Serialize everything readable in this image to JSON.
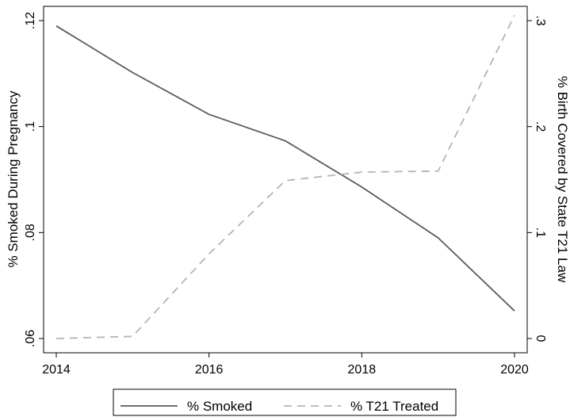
{
  "chart_data": {
    "type": "line",
    "x": [
      2014,
      2015,
      2016,
      2017,
      2018,
      2019,
      2020
    ],
    "series": [
      {
        "name": "% Smoked",
        "axis": "left",
        "style": "solid",
        "color": "#5a5a5a",
        "values": [
          0.119,
          0.1102,
          0.1023,
          0.0973,
          0.0886,
          0.079,
          0.0652
        ]
      },
      {
        "name": "% T21 Treated",
        "axis": "right",
        "style": "dashed",
        "color": "#b4b4b4",
        "values": [
          0.0,
          0.002,
          0.08,
          0.149,
          0.157,
          0.158,
          0.305
        ]
      }
    ],
    "xlabel": "",
    "ylabel_left": "% Smoked During Pregnancy",
    "ylabel_right": "% Birth Covered by State T21 Law",
    "xlim": [
      2014,
      2020
    ],
    "ylim_left": [
      0.06,
      0.12
    ],
    "ylim_right": [
      0,
      0.3
    ],
    "xticks": [
      2014,
      2016,
      2018,
      2020
    ],
    "xtick_labels": [
      "2014",
      "2016",
      "2018",
      "2020"
    ],
    "yticks_left": [
      0.06,
      0.08,
      0.1,
      0.12
    ],
    "ytick_labels_left": [
      ".06",
      ".08",
      ".1",
      ".12"
    ],
    "yticks_right": [
      0,
      0.1,
      0.2,
      0.3
    ],
    "ytick_labels_right": [
      "0",
      ".1",
      ".2",
      ".3"
    ],
    "grid": false,
    "legend": "bottom"
  }
}
